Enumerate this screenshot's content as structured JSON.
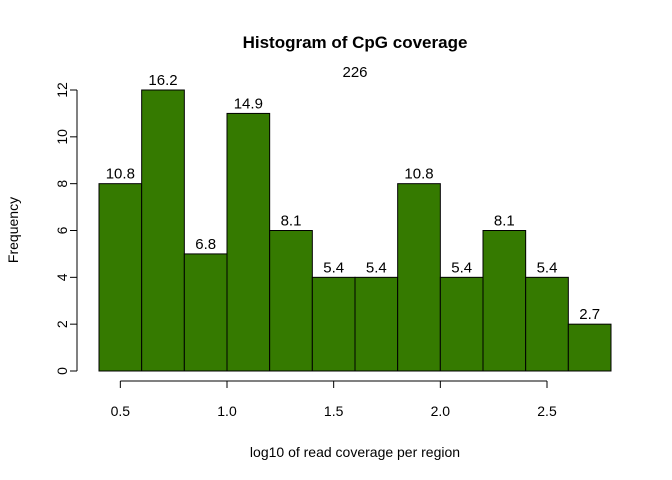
{
  "chart_data": {
    "type": "bar",
    "title": "Histogram of CpG coverage",
    "subtitle": "226",
    "xlabel": "log10 of read coverage per region",
    "ylabel": "Frequency",
    "bins": [
      {
        "start": 0.4,
        "end": 0.6,
        "count": 8,
        "label": "10.8"
      },
      {
        "start": 0.6,
        "end": 0.8,
        "count": 12,
        "label": "16.2"
      },
      {
        "start": 0.8,
        "end": 1.0,
        "count": 5,
        "label": "6.8"
      },
      {
        "start": 1.0,
        "end": 1.2,
        "count": 11,
        "label": "14.9"
      },
      {
        "start": 1.2,
        "end": 1.4,
        "count": 6,
        "label": "8.1"
      },
      {
        "start": 1.4,
        "end": 1.6,
        "count": 4,
        "label": "5.4"
      },
      {
        "start": 1.6,
        "end": 1.8,
        "count": 4,
        "label": "5.4"
      },
      {
        "start": 1.8,
        "end": 2.0,
        "count": 8,
        "label": "10.8"
      },
      {
        "start": 2.0,
        "end": 2.2,
        "count": 4,
        "label": "5.4"
      },
      {
        "start": 2.2,
        "end": 2.4,
        "count": 6,
        "label": "8.1"
      },
      {
        "start": 2.4,
        "end": 2.6,
        "count": 4,
        "label": "5.4"
      },
      {
        "start": 2.6,
        "end": 2.8,
        "count": 2,
        "label": "2.7"
      }
    ],
    "xlim": [
      0.4,
      2.8
    ],
    "ylim": [
      0,
      12
    ],
    "xticks": [
      0.5,
      1.0,
      1.5,
      2.0,
      2.5
    ],
    "xtick_labels": [
      "0.5",
      "1.0",
      "1.5",
      "2.0",
      "2.5"
    ],
    "yticks": [
      0,
      2,
      4,
      6,
      8,
      10,
      12
    ],
    "ytick_labels": [
      "0",
      "2",
      "4",
      "6",
      "8",
      "10",
      "12"
    ],
    "bar_color": "#357a00",
    "grid": false
  }
}
